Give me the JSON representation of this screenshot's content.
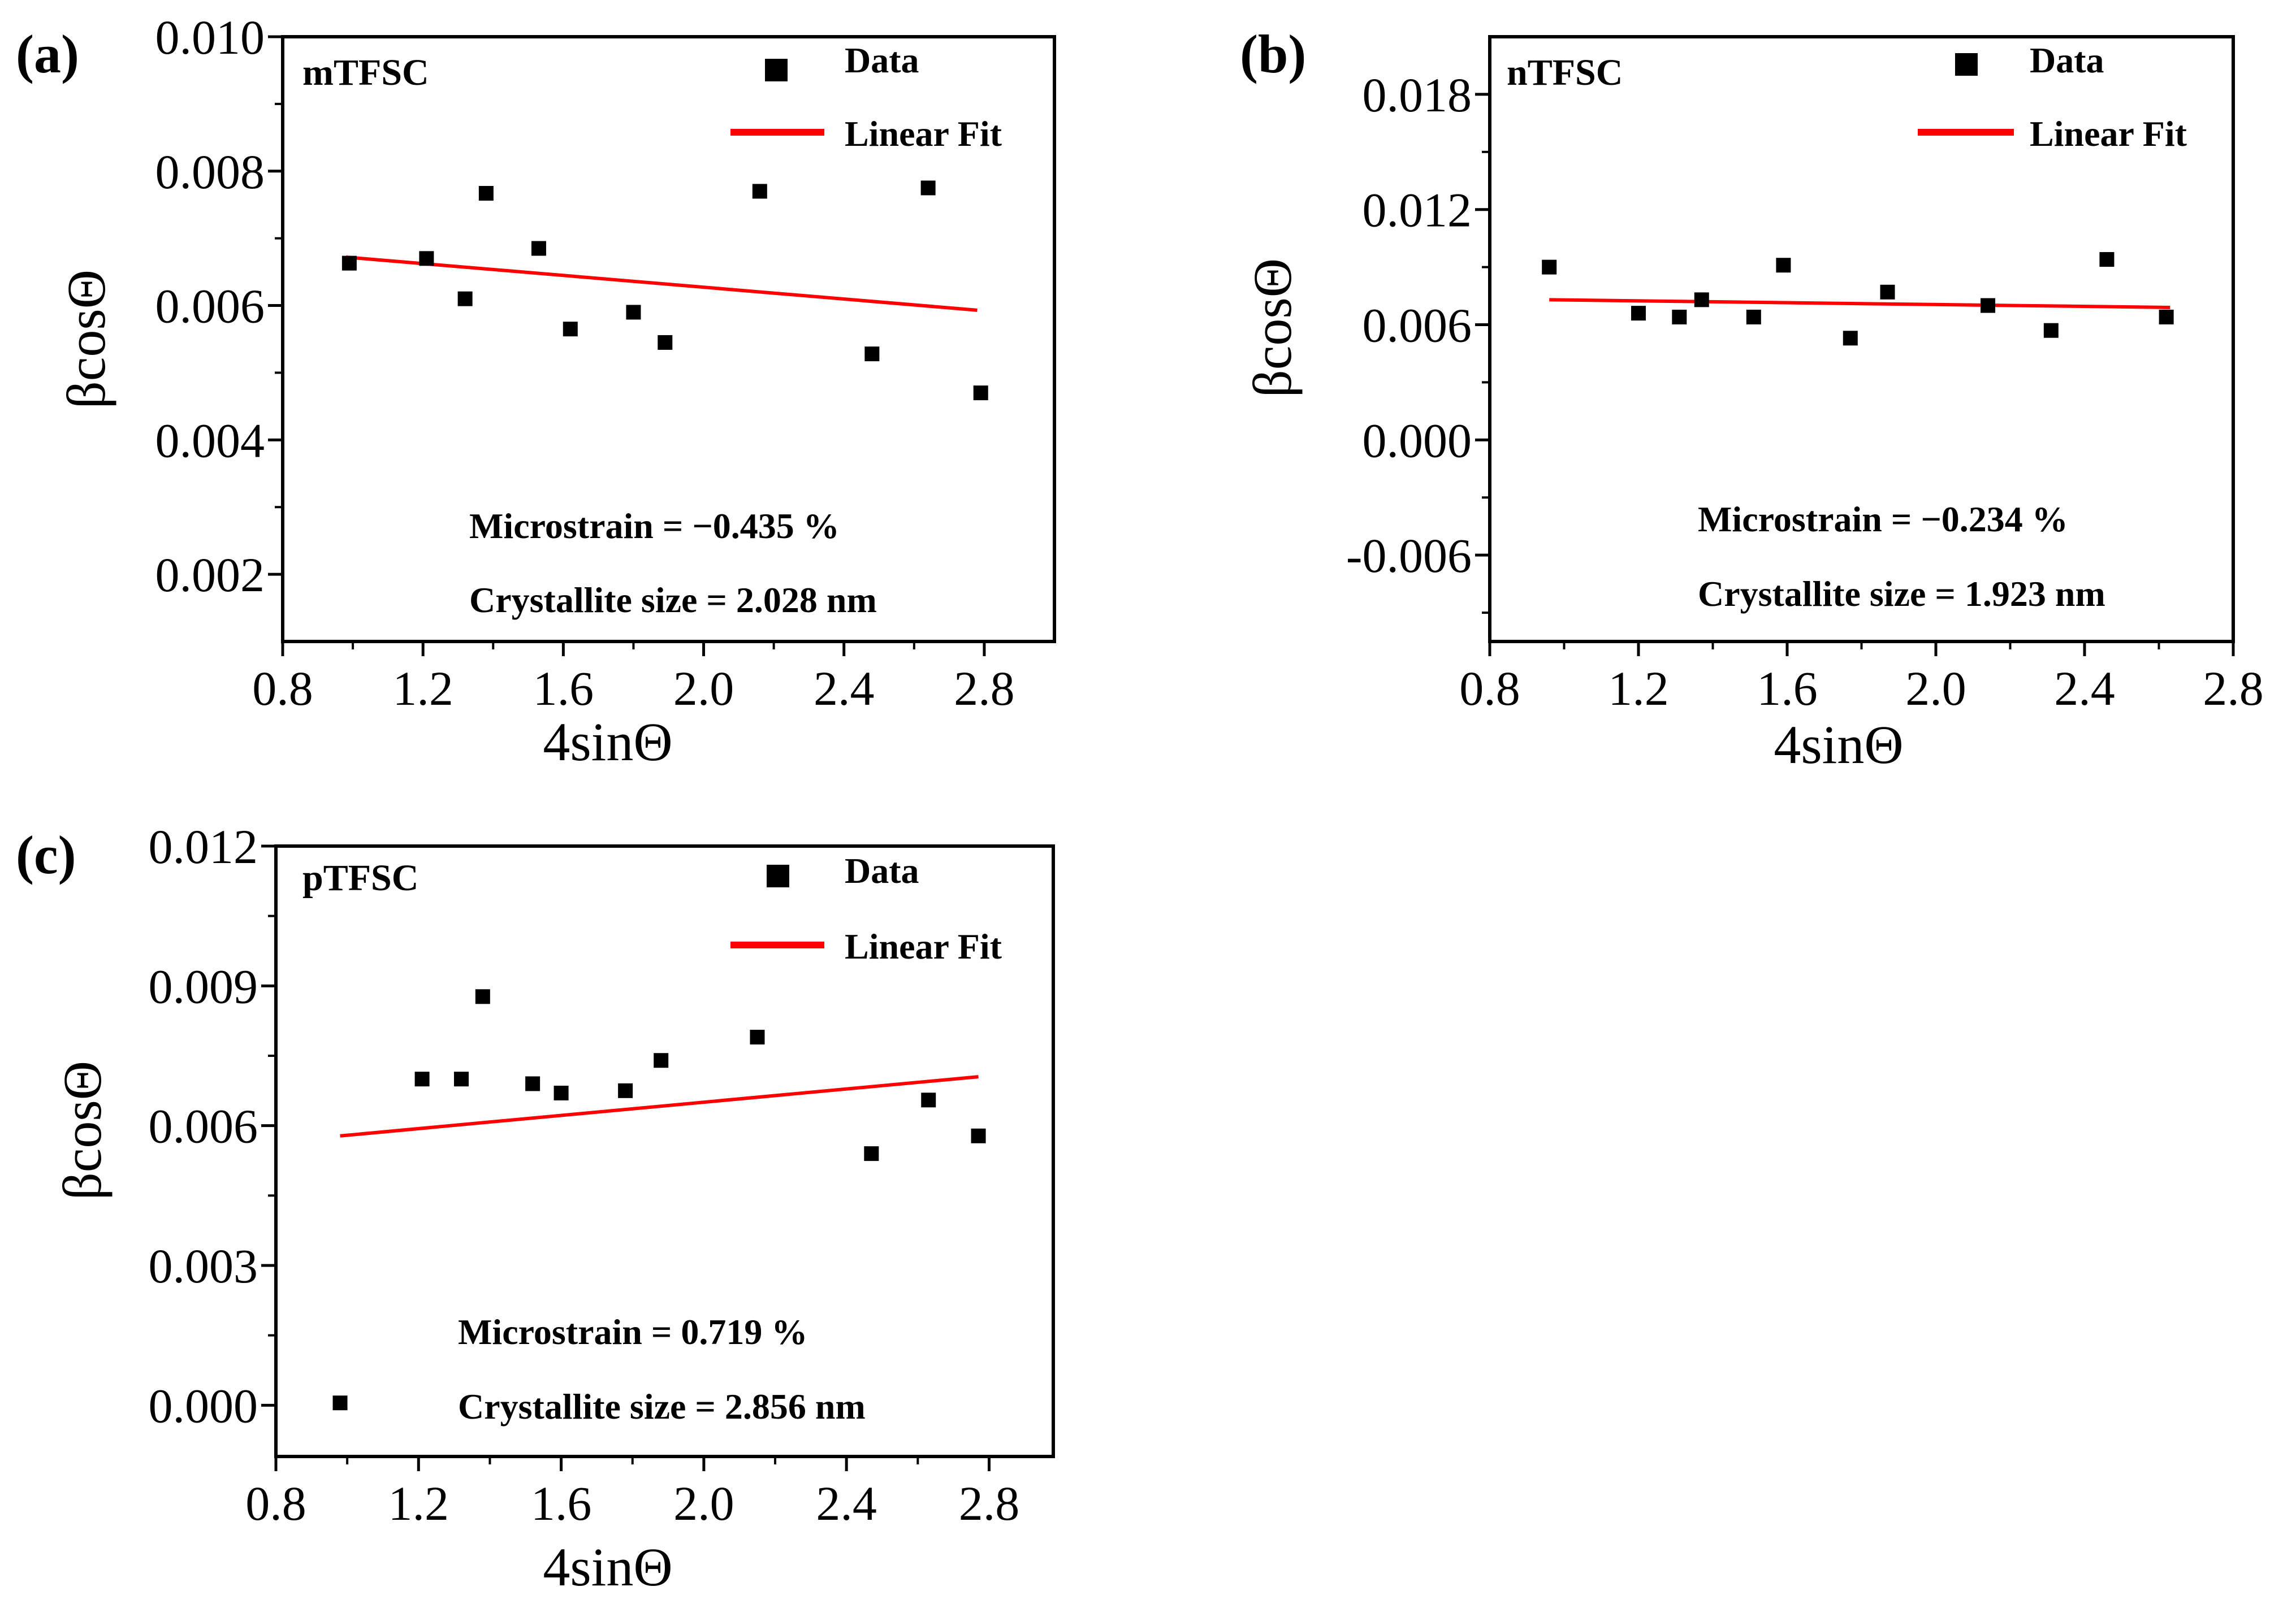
{
  "figure": {
    "x_axis_label": "4sinΘ",
    "y_axis_label": "βcosΘ",
    "legend_data": "Data",
    "legend_fit": "Linear Fit"
  },
  "colors": {
    "data_marker": "#000000",
    "fit_line": "#ff0000",
    "axes": "#000000"
  },
  "chart_data": [
    {
      "type": "scatter",
      "panel_label": "(a)",
      "sample": "mTFSC",
      "title": "",
      "xlabel": "4sinΘ",
      "ylabel": "βcosΘ",
      "xlim": [
        0.8,
        3.0
      ],
      "ylim": [
        0.001,
        0.01
      ],
      "x_ticks": [
        "0.8",
        "1.2",
        "1.6",
        "2.0",
        "2.4",
        "2.8"
      ],
      "x_tick_values": [
        0.8,
        1.2,
        1.6,
        2.0,
        2.4,
        2.8
      ],
      "y_ticks": [
        "0.002",
        "0.004",
        "0.006",
        "0.008",
        "0.010"
      ],
      "y_tick_values": [
        0.002,
        0.004,
        0.006,
        0.008,
        0.01
      ],
      "series": [
        {
          "name": "Data",
          "x": [
            0.99,
            1.21,
            1.32,
            1.38,
            1.53,
            1.62,
            1.8,
            1.89,
            2.16,
            2.48,
            2.64,
            2.79
          ],
          "y": [
            0.00663,
            0.0067,
            0.0061,
            0.00767,
            0.00685,
            0.00565,
            0.0059,
            0.00545,
            0.0077,
            0.00528,
            0.00775,
            0.0047
          ]
        },
        {
          "name": "Linear Fit",
          "x": [
            0.98,
            2.78
          ],
          "y": [
            0.00672,
            0.00593
          ]
        }
      ],
      "annotations": [
        "Microstrain = −0.435 %",
        "Crystallite size = 2.028 nm"
      ]
    },
    {
      "type": "scatter",
      "panel_label": "(b)",
      "sample": "nTFSC",
      "title": "",
      "xlabel": "4sinΘ",
      "ylabel": "βcosΘ",
      "xlim": [
        0.8,
        2.8
      ],
      "ylim": [
        -0.0105,
        0.021
      ],
      "x_ticks": [
        "0.8",
        "1.2",
        "1.6",
        "2.0",
        "2.4",
        "2.8"
      ],
      "x_tick_values": [
        0.8,
        1.2,
        1.6,
        2.0,
        2.4,
        2.8
      ],
      "y_ticks": [
        "-0.006",
        "0.000",
        "0.006",
        "0.012",
        "0.018"
      ],
      "y_tick_values": [
        -0.006,
        0.0,
        0.006,
        0.012,
        0.018
      ],
      "series": [
        {
          "name": "Data",
          "x": [
            0.96,
            1.2,
            1.31,
            1.37,
            1.51,
            1.59,
            1.77,
            1.87,
            2.14,
            2.31,
            2.46,
            2.62
          ],
          "y": [
            0.009,
            0.0066,
            0.0064,
            0.0073,
            0.0064,
            0.0091,
            0.0053,
            0.0077,
            0.007,
            0.0057,
            0.0094,
            0.0064
          ]
        },
        {
          "name": "Linear Fit",
          "x": [
            0.96,
            2.63
          ],
          "y": [
            0.0073,
            0.0069
          ]
        }
      ],
      "annotations": [
        "Microstrain = −0.234 %",
        "Crystallite size = 1.923 nm"
      ]
    },
    {
      "type": "scatter",
      "panel_label": "(c)",
      "sample": "pTFSC",
      "title": "",
      "xlabel": "4sinΘ",
      "ylabel": "βcosΘ",
      "xlim": [
        0.8,
        2.98
      ],
      "ylim": [
        -0.0011,
        0.012
      ],
      "x_ticks": [
        "0.8",
        "1.2",
        "1.6",
        "2.0",
        "2.4",
        "2.8"
      ],
      "x_tick_values": [
        0.8,
        1.2,
        1.6,
        2.0,
        2.4,
        2.8
      ],
      "y_ticks": [
        "0.000",
        "0.003",
        "0.006",
        "0.009",
        "0.012"
      ],
      "y_tick_values": [
        0.0,
        0.003,
        0.006,
        0.009,
        0.012
      ],
      "series": [
        {
          "name": "Data",
          "x": [
            0.98,
            1.21,
            1.32,
            1.38,
            1.52,
            1.6,
            1.78,
            1.88,
            2.15,
            2.47,
            2.63,
            2.77
          ],
          "y": [
            5e-05,
            0.007,
            0.007,
            0.00877,
            0.0069,
            0.0067,
            0.00675,
            0.0074,
            0.0079,
            0.0054,
            0.00655,
            0.00578
          ]
        },
        {
          "name": "Linear Fit",
          "x": [
            0.98,
            2.77
          ],
          "y": [
            0.00578,
            0.00705
          ]
        }
      ],
      "annotations": [
        "Microstrain = 0.719 %",
        "Crystallite size = 2.856 nm"
      ]
    }
  ]
}
